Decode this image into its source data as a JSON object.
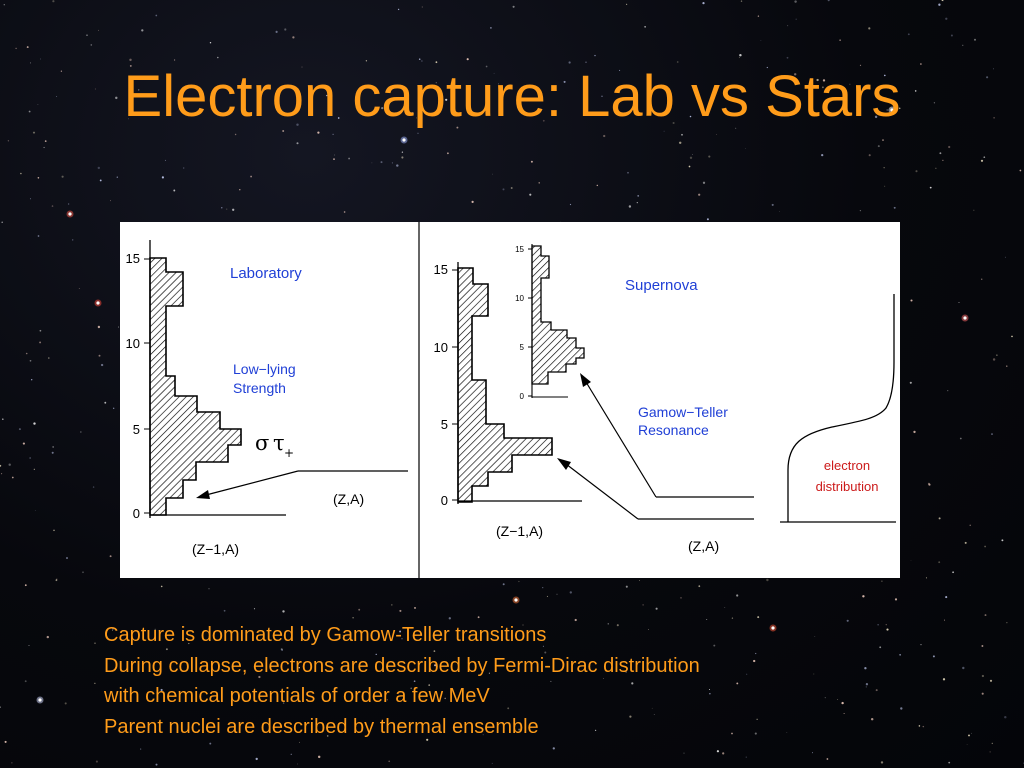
{
  "slide": {
    "title": "Electron capture: Lab vs Stars",
    "bullets": [
      "Capture is dominated by Gamow-Teller transitions",
      "During collapse, electrons are described by Fermi-Dirac distribution",
      "with chemical potentials of order a few MeV",
      "Parent nuclei are described by thermal ensemble"
    ]
  },
  "diagram": {
    "lab": {
      "panel_label": "Laboratory",
      "strength_label_line1": "Low−lying",
      "strength_label_line2": "Strength",
      "sigma_symbol": "σ",
      "tau_symbol": "τ",
      "tau_subscript": "+",
      "parent_label": "(Z,A)",
      "daughter_label": "(Z−1,A)",
      "axis_ticks": [
        "0",
        "5",
        "10",
        "15"
      ]
    },
    "supernova": {
      "panel_label": "Supernova",
      "resonance_label_line1": "Gamow−Teller",
      "resonance_label_line2": "Resonance",
      "parent_label": "(Z,A)",
      "daughter_label": "(Z−1,A)",
      "axis_ticks": [
        "0",
        "5",
        "10",
        "15"
      ],
      "inset_axis_ticks": [
        "0",
        "5",
        "10",
        "15"
      ]
    },
    "electron_distribution_line1": "electron",
    "electron_distribution_line2": "distribution",
    "colors": {
      "title_text": "#ff9c1a",
      "panel_labels": "#1f3fd6",
      "electron_label": "#cc1a1a",
      "axes": "#000000"
    }
  }
}
